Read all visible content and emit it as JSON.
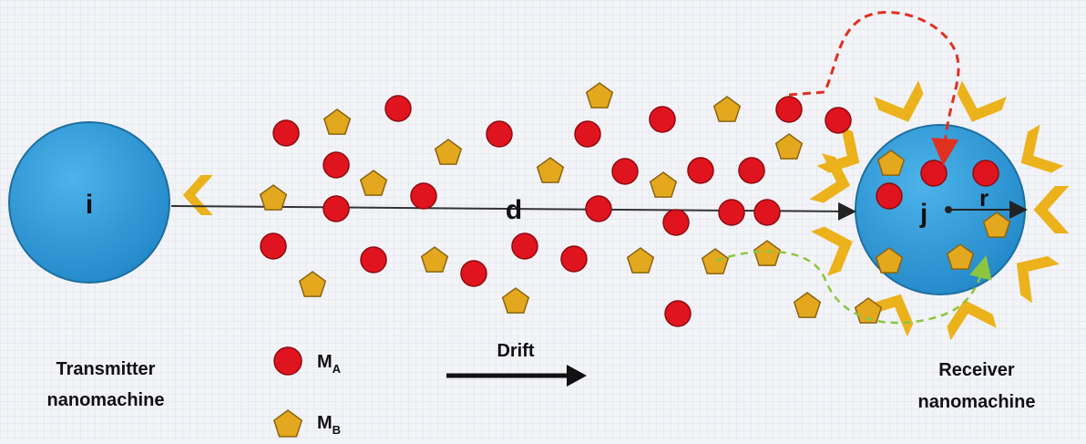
{
  "labels": {
    "transmitter_id": "i",
    "receiver_id": "j",
    "distance": "d",
    "radius": "r",
    "transmitter_line1": "Transmitter",
    "transmitter_line2": "nanomachine",
    "receiver_line1": "Receiver",
    "receiver_line2": "nanomachine",
    "drift": "Drift"
  },
  "legend": {
    "ma_main": "M",
    "ma_sub": "A",
    "mb_main": "M",
    "mb_sub": "B"
  },
  "colors": {
    "background": "#f3f4f8",
    "grid": "#dadde6",
    "nanomachine_fill": "#2e9bd6",
    "nanomachine_stroke": "#1d6fa0",
    "molecule_a": "#e0141e",
    "molecule_a_stroke": "#8d0b10",
    "molecule_b": "#e3a81e",
    "molecule_b_stroke": "#8a6410",
    "receptor": "#ecb21c",
    "absorbed_path": "#e03020",
    "reflected_path": "#8cc63f",
    "arrow": "#111111"
  },
  "icons": {
    "molecule_a": "red-circle-icon",
    "molecule_b": "yellow-pentagon-icon",
    "receptor": "chevron-receptor-icon"
  }
}
